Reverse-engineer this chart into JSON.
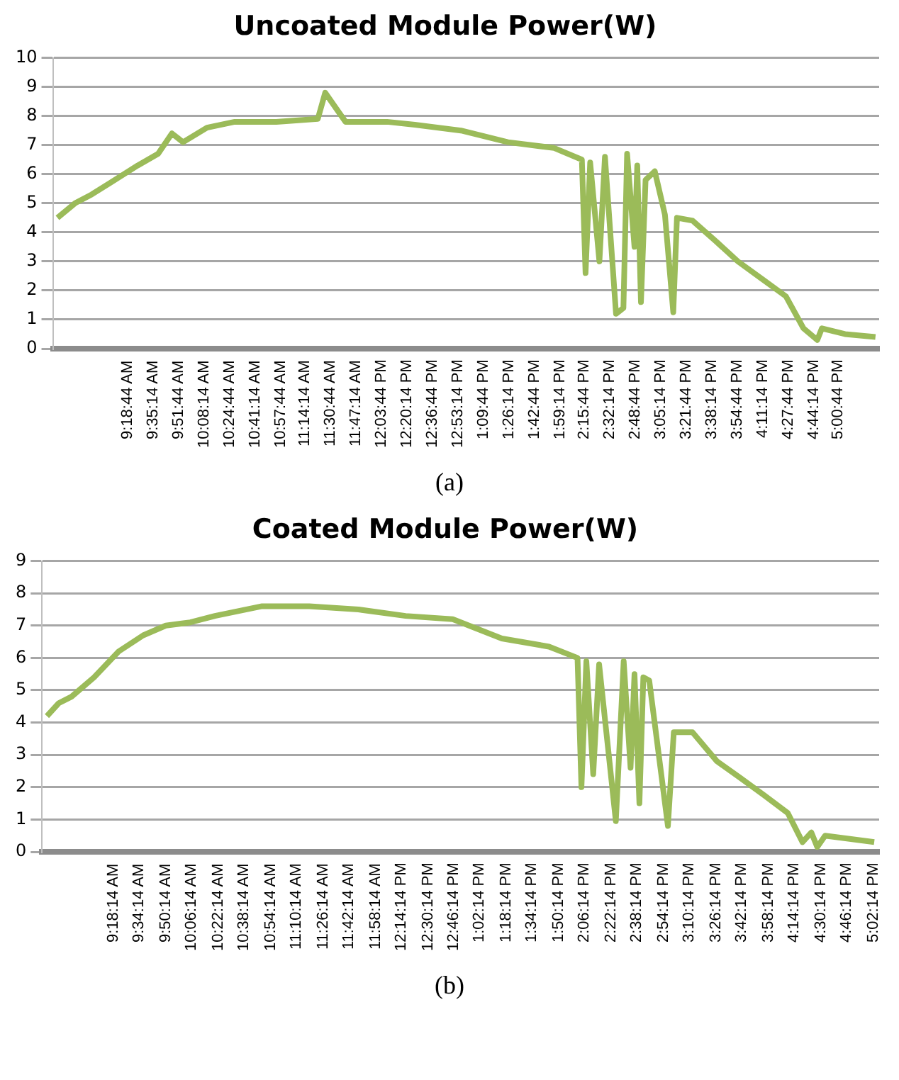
{
  "chart_data": [
    {
      "type": "line",
      "title": "Uncoated Module Power(W)",
      "annotations": [
        "(a)"
      ],
      "x": [
        8.55,
        8.74,
        8.92,
        9.12,
        9.42,
        9.64,
        9.79,
        9.91,
        10.17,
        10.47,
        10.92,
        11.37,
        11.45,
        11.67,
        12.12,
        12.42,
        12.92,
        13.43,
        13.93,
        14.23,
        14.27,
        14.32,
        14.42,
        14.48,
        14.6,
        14.68,
        14.72,
        14.8,
        14.83,
        14.87,
        14.92,
        15.02,
        15.13,
        15.22,
        15.26,
        15.43,
        15.68,
        15.92,
        16.18,
        16.44,
        16.63,
        16.78,
        16.83,
        17.08,
        17.41
      ],
      "series": [
        {
          "color": "#9bbb59",
          "values": [
            4.5,
            5.0,
            5.3,
            5.7,
            6.3,
            6.7,
            7.4,
            7.1,
            7.6,
            7.8,
            7.8,
            7.9,
            8.8,
            7.8,
            7.8,
            7.7,
            7.5,
            7.1,
            6.9,
            6.5,
            2.6,
            6.4,
            3.0,
            6.6,
            1.2,
            1.4,
            6.7,
            3.5,
            6.3,
            1.6,
            5.8,
            6.1,
            4.6,
            1.25,
            4.5,
            4.4,
            3.7,
            3.0,
            2.4,
            1.8,
            0.7,
            0.3,
            0.7,
            0.5,
            0.4
          ]
        }
      ],
      "xlim": [
        8.5,
        17.45
      ],
      "xticks": [
        {
          "value": 9.3122,
          "label": "9:18:44 AM"
        },
        {
          "value": 9.5872,
          "label": "9:35:14 AM"
        },
        {
          "value": 9.8622,
          "label": "9:51:44 AM"
        },
        {
          "value": 10.1372,
          "label": "10:08:14 AM"
        },
        {
          "value": 10.4122,
          "label": "10:24:44 AM"
        },
        {
          "value": 10.6872,
          "label": "10:41:14 AM"
        },
        {
          "value": 10.9622,
          "label": "10:57:44 AM"
        },
        {
          "value": 11.2372,
          "label": "11:14:14 AM"
        },
        {
          "value": 11.5122,
          "label": "11:30:44 AM"
        },
        {
          "value": 11.7872,
          "label": "11:47:14 AM"
        },
        {
          "value": 12.0622,
          "label": "12:03:44 PM"
        },
        {
          "value": 12.3372,
          "label": "12:20:14 PM"
        },
        {
          "value": 12.6122,
          "label": "12:36:44 PM"
        },
        {
          "value": 12.8872,
          "label": "12:53:14 PM"
        },
        {
          "value": 13.1622,
          "label": "1:09:44 PM"
        },
        {
          "value": 13.4372,
          "label": "1:26:14 PM"
        },
        {
          "value": 13.7122,
          "label": "1:42:44 PM"
        },
        {
          "value": 13.9872,
          "label": "1:59:14 PM"
        },
        {
          "value": 14.2622,
          "label": "2:15:44 PM"
        },
        {
          "value": 14.5372,
          "label": "2:32:14 PM"
        },
        {
          "value": 14.8122,
          "label": "2:48:44 PM"
        },
        {
          "value": 15.0872,
          "label": "3:05:14 PM"
        },
        {
          "value": 15.3622,
          "label": "3:21:44 PM"
        },
        {
          "value": 15.6372,
          "label": "3:38:14 PM"
        },
        {
          "value": 15.9122,
          "label": "3:54:44 PM"
        },
        {
          "value": 16.1872,
          "label": "4:11:14 PM"
        },
        {
          "value": 16.4622,
          "label": "4:27:44 PM"
        },
        {
          "value": 16.7372,
          "label": "4:44:14 PM"
        },
        {
          "value": 17.0122,
          "label": "5:00:44 PM"
        }
      ],
      "ylim": [
        0,
        10
      ],
      "yticks": [
        0,
        1,
        2,
        3,
        4,
        5,
        6,
        7,
        8,
        9,
        10
      ],
      "grid": "y",
      "legend": false
    },
    {
      "type": "line",
      "title": "Coated Module Power(W)",
      "annotations": [
        "(b)"
      ],
      "x": [
        8.63,
        8.75,
        8.88,
        9.11,
        9.36,
        9.61,
        9.84,
        10.09,
        10.34,
        10.82,
        11.3,
        11.8,
        12.28,
        12.76,
        13.26,
        13.74,
        14.03,
        14.07,
        14.12,
        14.19,
        14.25,
        14.42,
        14.5,
        14.57,
        14.61,
        14.66,
        14.7,
        14.76,
        14.95,
        15.01,
        15.2,
        15.45,
        15.68,
        15.93,
        16.17,
        16.32,
        16.41,
        16.47,
        16.55,
        17.05
      ],
      "series": [
        {
          "color": "#9bbb59",
          "values": [
            4.2,
            4.6,
            4.8,
            5.4,
            6.2,
            6.7,
            7.0,
            7.1,
            7.3,
            7.6,
            7.6,
            7.5,
            7.3,
            7.2,
            6.6,
            6.35,
            6.0,
            2.0,
            5.9,
            2.4,
            5.8,
            0.95,
            5.9,
            2.6,
            5.5,
            1.5,
            5.4,
            5.3,
            0.8,
            3.7,
            3.7,
            2.8,
            2.3,
            1.75,
            1.2,
            0.3,
            0.6,
            0.15,
            0.5,
            0.3
          ]
        }
      ],
      "xlim": [
        8.58,
        17.1
      ],
      "xticks": [
        {
          "value": 9.3039,
          "label": "9:18:14 AM"
        },
        {
          "value": 9.5706,
          "label": "9:34:14 AM"
        },
        {
          "value": 9.8372,
          "label": "9:50:14 AM"
        },
        {
          "value": 10.1039,
          "label": "10:06:14 AM"
        },
        {
          "value": 10.3706,
          "label": "10:22:14 AM"
        },
        {
          "value": 10.6372,
          "label": "10:38:14 AM"
        },
        {
          "value": 10.9039,
          "label": "10:54:14 AM"
        },
        {
          "value": 11.1706,
          "label": "11:10:14 AM"
        },
        {
          "value": 11.4372,
          "label": "11:26:14 AM"
        },
        {
          "value": 11.7039,
          "label": "11:42:14 AM"
        },
        {
          "value": 11.9706,
          "label": "11:58:14 AM"
        },
        {
          "value": 12.2372,
          "label": "12:14:14 PM"
        },
        {
          "value": 12.5039,
          "label": "12:30:14 PM"
        },
        {
          "value": 12.7706,
          "label": "12:46:14 PM"
        },
        {
          "value": 13.0372,
          "label": "1:02:14 PM"
        },
        {
          "value": 13.3039,
          "label": "1:18:14 PM"
        },
        {
          "value": 13.5706,
          "label": "1:34:14 PM"
        },
        {
          "value": 13.8372,
          "label": "1:50:14 PM"
        },
        {
          "value": 14.1039,
          "label": "2:06:14 PM"
        },
        {
          "value": 14.3706,
          "label": "2:22:14 PM"
        },
        {
          "value": 14.6372,
          "label": "2:38:14 PM"
        },
        {
          "value": 14.9039,
          "label": "2:54:14 PM"
        },
        {
          "value": 15.1706,
          "label": "3:10:14 PM"
        },
        {
          "value": 15.4372,
          "label": "3:26:14 PM"
        },
        {
          "value": 15.7039,
          "label": "3:42:14 PM"
        },
        {
          "value": 15.9706,
          "label": "3:58:14 PM"
        },
        {
          "value": 16.2372,
          "label": "4:14:14 PM"
        },
        {
          "value": 16.5039,
          "label": "4:30:14 PM"
        },
        {
          "value": 16.7706,
          "label": "4:46:14 PM"
        },
        {
          "value": 17.0372,
          "label": "5:02:14 PM"
        }
      ],
      "ylim": [
        0,
        9
      ],
      "yticks": [
        0,
        1,
        2,
        3,
        4,
        5,
        6,
        7,
        8,
        9
      ],
      "grid": "y",
      "legend": false
    }
  ]
}
